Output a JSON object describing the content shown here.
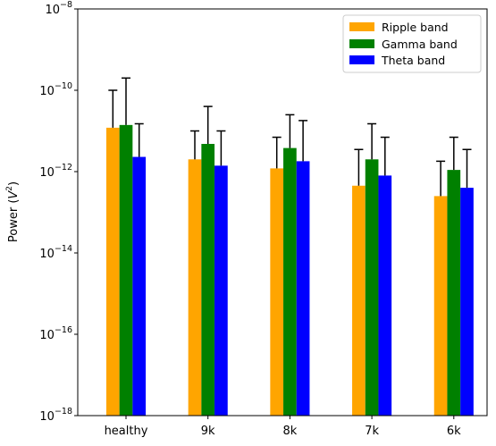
{
  "chart_data": {
    "type": "bar",
    "title": "",
    "xlabel": "",
    "ylabel_prefix": "Power (",
    "ylabel_var": "V",
    "ylabel_sup": "2",
    "ylabel_suffix": ")",
    "yscale": "log",
    "ylim": [
      1e-18,
      1e-08
    ],
    "ytick_exponents": [
      -18,
      -16,
      -14,
      -12,
      -10,
      -8
    ],
    "ytick_base": "10",
    "categories": [
      "healthy",
      "9k",
      "8k",
      "7k",
      "6k"
    ],
    "series": [
      {
        "name": "Ripple band",
        "color": "#ffa500",
        "values": [
          1.2e-11,
          2e-12,
          1.2e-12,
          4.5e-13,
          2.5e-13
        ],
        "error_upper": [
          1e-10,
          1e-11,
          7e-12,
          3.5e-12,
          1.8e-12
        ]
      },
      {
        "name": "Gamma band",
        "color": "#008000",
        "values": [
          1.4e-11,
          4.8e-12,
          3.8e-12,
          2e-12,
          1.1e-12
        ],
        "error_upper": [
          2e-10,
          4e-11,
          2.5e-11,
          1.5e-11,
          7e-12
        ]
      },
      {
        "name": "Theta band",
        "color": "#0000ff",
        "values": [
          2.3e-12,
          1.4e-12,
          1.8e-12,
          8e-13,
          4e-13
        ],
        "error_upper": [
          1.5e-11,
          1e-11,
          1.8e-11,
          7e-12,
          3.5e-12
        ]
      }
    ],
    "legend_position": "top-right",
    "grid": false
  }
}
